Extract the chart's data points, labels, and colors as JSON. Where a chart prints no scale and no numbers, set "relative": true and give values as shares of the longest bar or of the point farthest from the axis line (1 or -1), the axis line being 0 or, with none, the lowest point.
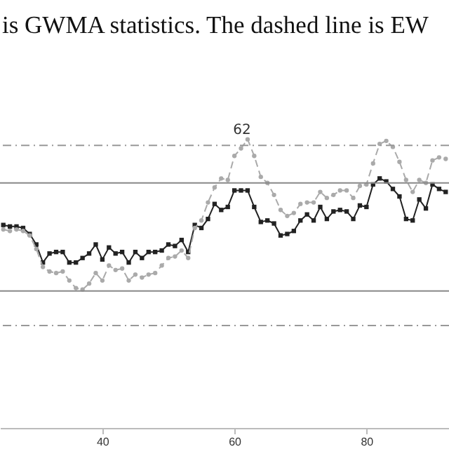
{
  "chart_data": {
    "type": "line",
    "title": "is GWMA statistics. The dashed line is EW",
    "relative": true,
    "x": [
      25,
      26,
      27,
      28,
      29,
      30,
      31,
      32,
      33,
      34,
      35,
      36,
      37,
      38,
      39,
      40,
      41,
      42,
      43,
      44,
      45,
      46,
      47,
      48,
      49,
      50,
      51,
      52,
      53,
      54,
      55,
      56,
      57,
      58,
      59,
      60,
      61,
      62,
      63,
      64,
      65,
      66,
      67,
      68,
      69,
      70,
      71,
      72,
      73,
      74,
      75,
      76,
      77,
      78,
      79,
      80,
      81,
      82,
      83,
      84,
      85,
      86,
      87,
      88,
      89,
      90,
      91,
      92
    ],
    "series": [
      {
        "color": "#222222",
        "line_style": "solid",
        "marker": "square",
        "values": [
          0.43,
          0.42,
          0.42,
          0.41,
          0.37,
          0.3,
          0.18,
          0.24,
          0.25,
          0.25,
          0.18,
          0.18,
          0.21,
          0.24,
          0.3,
          0.2,
          0.28,
          0.24,
          0.25,
          0.18,
          0.25,
          0.21,
          0.25,
          0.25,
          0.26,
          0.3,
          0.29,
          0.33,
          0.25,
          0.43,
          0.41,
          0.47,
          0.57,
          0.53,
          0.55,
          0.66,
          0.66,
          0.66,
          0.55,
          0.45,
          0.46,
          0.44,
          0.36,
          0.37,
          0.39,
          0.46,
          0.5,
          0.46,
          0.55,
          0.47,
          0.52,
          0.53,
          0.52,
          0.47,
          0.56,
          0.55,
          0.7,
          0.74,
          0.72,
          0.67,
          0.62,
          0.47,
          0.46,
          0.6,
          0.54,
          0.7,
          0.67,
          0.65
        ]
      },
      {
        "color": "#aaaaaa",
        "line_style": "dashed",
        "marker": "circle",
        "values": [
          0.4,
          0.39,
          0.4,
          0.39,
          0.36,
          0.27,
          0.15,
          0.12,
          0.11,
          0.12,
          0.06,
          0.01,
          0,
          0.04,
          0.11,
          0.06,
          0.16,
          0.13,
          0.14,
          0.06,
          0.1,
          0.08,
          0.1,
          0.11,
          0.16,
          0.21,
          0.22,
          0.26,
          0.21,
          0.41,
          0.46,
          0.58,
          0.68,
          0.74,
          0.73,
          0.89,
          0.94,
          1,
          0.89,
          0.75,
          0.71,
          0.63,
          0.53,
          0.49,
          0.51,
          0.57,
          0.58,
          0.58,
          0.65,
          0.61,
          0.63,
          0.66,
          0.66,
          0.61,
          0.69,
          0.7,
          0.84,
          0.97,
          0.99,
          0.95,
          0.85,
          0.73,
          0.65,
          0.73,
          0.71,
          0.86,
          0.88,
          0.87
        ]
      }
    ],
    "xlim": [
      24.5,
      92.5
    ],
    "xticks": [
      40,
      60,
      80
    ],
    "ref_lines": [
      {
        "axis": "y",
        "value": 0.96,
        "color": "#999999",
        "line_style": "dashed"
      },
      {
        "axis": "y",
        "value": 0.71,
        "color": "#888888",
        "line_style": "solid"
      },
      {
        "axis": "y",
        "value": -0.01,
        "color": "#888888",
        "line_style": "solid"
      },
      {
        "axis": "y",
        "value": -0.24,
        "color": "#999999",
        "line_style": "dashed"
      }
    ],
    "annotations": [
      {
        "text": "62",
        "x": 62,
        "y": 1
      }
    ],
    "grid": false
  }
}
